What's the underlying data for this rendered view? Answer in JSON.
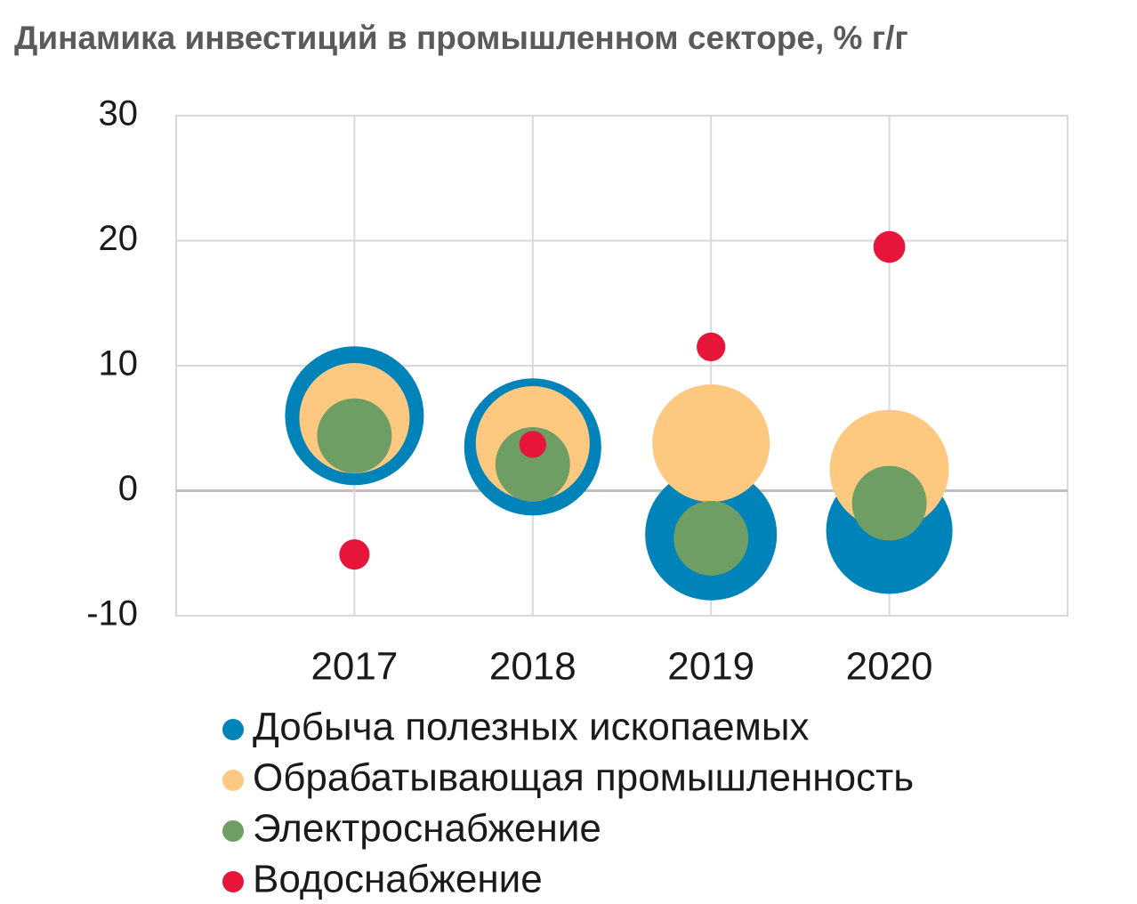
{
  "chart_data": {
    "type": "bubble",
    "title": "Динамика инвестиций в промышленном секторе, % г/г",
    "x": [
      2017,
      2018,
      2019,
      2020
    ],
    "xlim": [
      2016,
      2021
    ],
    "xticks": [
      2017,
      2018,
      2019,
      2020
    ],
    "ylim": [
      -10,
      30
    ],
    "yticks": [
      -10,
      0,
      10,
      20,
      30
    ],
    "grid": true,
    "legend": "bottom",
    "series": [
      {
        "name": "Добыча полезных ископаемых",
        "color": "#0083b8",
        "values": [
          6.0,
          3.5,
          -3.5,
          -3.2
        ],
        "sizes": [
          60.8,
          59.3,
          54.8,
          50.4
        ]
      },
      {
        "name": "Обрабатывающая промышленность",
        "color": "#fdc981",
        "values": [
          5.8,
          3.8,
          3.8,
          1.7
        ],
        "sizes": [
          38.4,
          41.0,
          43.6,
          44.9
        ]
      },
      {
        "name": "Электроснабжение",
        "color": "#6e9e64",
        "values": [
          4.4,
          2.1,
          -3.8,
          -1.0
        ],
        "sizes": [
          17.6,
          17.6,
          17.6,
          17.6
        ]
      },
      {
        "name": "Водоснабжение",
        "color": "#e6163b",
        "values": [
          -5.1,
          3.7,
          11.5,
          19.5
        ],
        "sizes": [
          2.9,
          2.3,
          2.6,
          3.2
        ]
      }
    ]
  }
}
